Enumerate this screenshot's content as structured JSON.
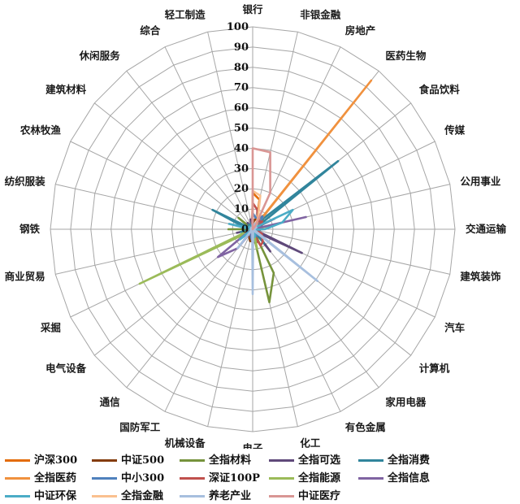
{
  "chart_data": {
    "type": "line",
    "variant": "radar",
    "title": "",
    "axis": {
      "min": 0,
      "max": 100,
      "step": 10,
      "grid": true
    },
    "legend_position": "bottom",
    "legend_columns": 5,
    "categories": [
      "银行",
      "非银金融",
      "房地产",
      "医药生物",
      "食品饮料",
      "传媒",
      "公用事业",
      "交通运输",
      "建筑装饰",
      "汽车",
      "计算机",
      "家用电器",
      "有色金属",
      "化工",
      "电子",
      "机械设备",
      "国防军工",
      "通信",
      "电气设备",
      "采掘",
      "商业贸易",
      "钢铁",
      "纺织服装",
      "农林牧渔",
      "建筑材料",
      "休闲服务",
      "综合",
      "轻工制造"
    ],
    "series": [
      {
        "name": "沪深300",
        "color": "#E36C09",
        "values": [
          18,
          15,
          5,
          6,
          7,
          2,
          3,
          3,
          2,
          4,
          3,
          4,
          2,
          3,
          4,
          2,
          1,
          1,
          2,
          3,
          1,
          1,
          0,
          1,
          1,
          0,
          0,
          1
        ]
      },
      {
        "name": "中证500",
        "color": "#843C0C",
        "values": [
          3,
          5,
          5,
          9,
          3,
          5,
          4,
          4,
          3,
          4,
          7,
          2,
          6,
          7,
          6,
          6,
          4,
          4,
          4,
          4,
          3,
          3,
          2,
          3,
          3,
          1,
          1,
          2
        ]
      },
      {
        "name": "全指材料",
        "color": "#76933C",
        "values": [
          0,
          0,
          1,
          1,
          0,
          0,
          1,
          1,
          1,
          1,
          0,
          0,
          24,
          37,
          1,
          3,
          1,
          0,
          1,
          14,
          0,
          12,
          0,
          1,
          9,
          0,
          0,
          1
        ]
      },
      {
        "name": "全指可选",
        "color": "#5F497A",
        "values": [
          0,
          0,
          2,
          1,
          1,
          12,
          0,
          1,
          1,
          27,
          2,
          14,
          0,
          1,
          2,
          1,
          0,
          0,
          1,
          0,
          8,
          0,
          4,
          1,
          1,
          4,
          1,
          5
        ]
      },
      {
        "name": "全指消费",
        "color": "#31859C",
        "values": [
          0,
          0,
          0,
          4,
          54,
          2,
          0,
          1,
          0,
          2,
          0,
          9,
          0,
          1,
          1,
          0,
          0,
          0,
          0,
          0,
          6,
          0,
          4,
          22,
          0,
          3,
          1,
          3
        ]
      },
      {
        "name": "全指医药",
        "color": "#F0913E",
        "values": [
          0,
          0,
          0,
          94,
          1,
          0,
          0,
          0,
          0,
          0,
          0,
          0,
          0,
          2,
          0,
          0,
          0,
          0,
          0,
          0,
          1,
          0,
          0,
          1,
          0,
          1,
          0,
          0
        ]
      },
      {
        "name": "中小300",
        "color": "#4F81BD",
        "values": [
          8,
          6,
          6,
          8,
          4,
          4,
          3,
          3,
          3,
          4,
          5,
          3,
          4,
          6,
          6,
          4,
          2,
          3,
          3,
          2,
          2,
          2,
          2,
          2,
          2,
          1,
          1,
          2
        ]
      },
      {
        "name": "深证100P",
        "color": "#C0504D",
        "values": [
          13,
          10,
          6,
          5,
          6,
          3,
          2,
          2,
          1,
          5,
          6,
          8,
          9,
          3,
          5,
          2,
          1,
          2,
          1,
          1,
          2,
          1,
          1,
          1,
          1,
          0,
          0,
          1
        ]
      },
      {
        "name": "全指能源",
        "color": "#9BBB59",
        "values": [
          0,
          0,
          0,
          0,
          0,
          0,
          8,
          2,
          0,
          0,
          0,
          0,
          1,
          10,
          0,
          1,
          0,
          0,
          2,
          62,
          1,
          2,
          0,
          0,
          1,
          0,
          0,
          0
        ]
      },
      {
        "name": "全指信息",
        "color": "#8064A2",
        "values": [
          0,
          0,
          0,
          0,
          0,
          0,
          27,
          0,
          0,
          0,
          6,
          1,
          0,
          0,
          8,
          2,
          1,
          12,
          22,
          2,
          0,
          0,
          1,
          0,
          0,
          0,
          0,
          1
        ]
      },
      {
        "name": "中证环保",
        "color": "#4BACC6",
        "values": [
          1,
          0,
          1,
          2,
          1,
          22,
          15,
          6,
          1,
          2,
          1,
          0,
          3,
          4,
          1,
          2,
          0,
          1,
          8,
          1,
          0,
          1,
          12,
          1,
          2,
          0,
          0,
          2
        ]
      },
      {
        "name": "全指金融",
        "color": "#FAC08F",
        "values": [
          19,
          17,
          6,
          1,
          0,
          0,
          0,
          0,
          0,
          0,
          0,
          0,
          0,
          0,
          0,
          0,
          0,
          0,
          0,
          0,
          0,
          0,
          0,
          0,
          0,
          0,
          0,
          0
        ]
      },
      {
        "name": "养老产业",
        "color": "#A7BFDE",
        "values": [
          2,
          1,
          3,
          3,
          1,
          2,
          1,
          1,
          0,
          1,
          41,
          1,
          0,
          1,
          32,
          1,
          0,
          12,
          1,
          0,
          1,
          0,
          0,
          1,
          0,
          1,
          0,
          0
        ]
      },
      {
        "name": "中证医疗",
        "color": "#D99694",
        "values": [
          40,
          39,
          20,
          2,
          0,
          0,
          0,
          0,
          0,
          0,
          0,
          0,
          0,
          0,
          0,
          0,
          0,
          0,
          0,
          0,
          0,
          0,
          0,
          0,
          0,
          0,
          0,
          0
        ]
      }
    ],
    "grid_color": "#A6A6A6"
  }
}
